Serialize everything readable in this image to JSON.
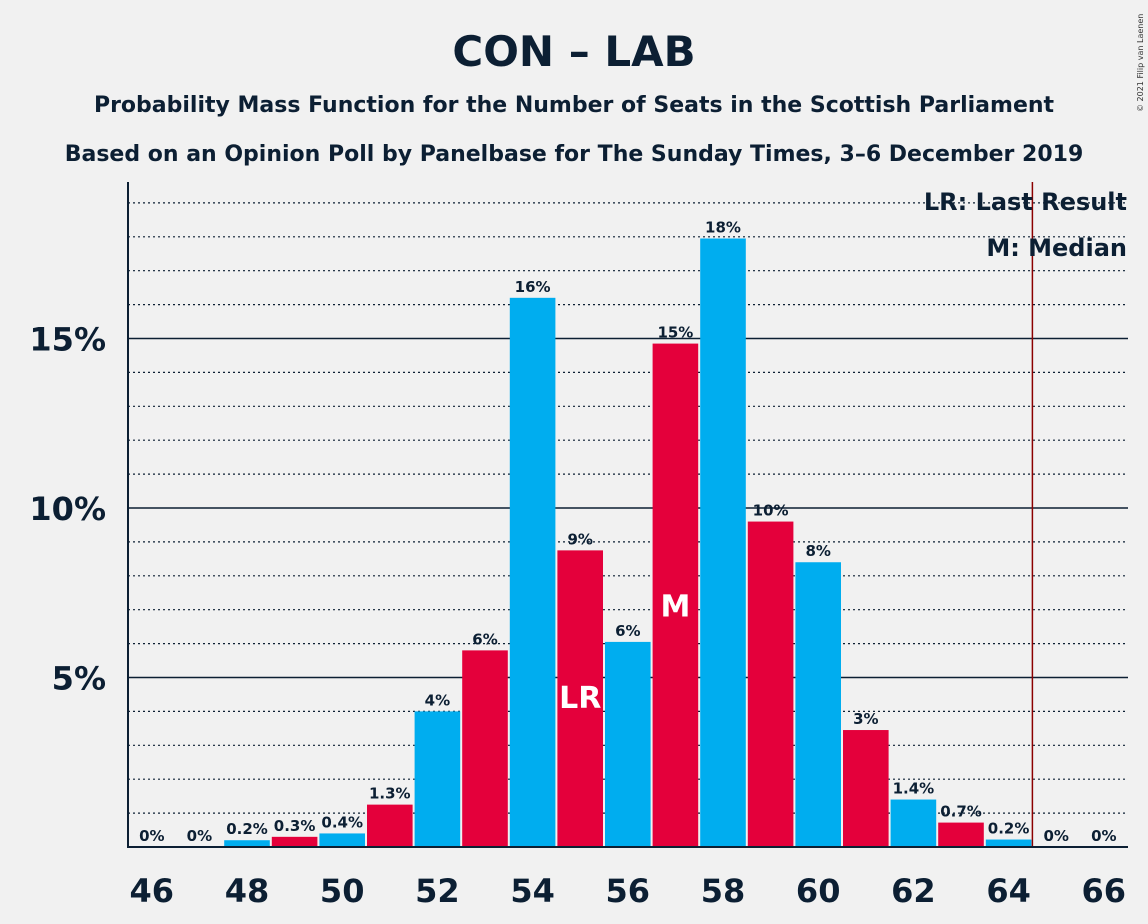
{
  "chart_data": {
    "type": "bar",
    "title": "CON – LAB",
    "subtitle_1": "Probability Mass Function for the Number of Seats in the Scottish Parliament",
    "subtitle_2": "Based on an Opinion Poll by Panelbase for The Sunday Times, 3–6 December 2019",
    "copyright": "© 2021 Filip van Laenen",
    "legend": {
      "lr": "LR: Last Result",
      "m": "M: Median",
      "placement": "top-right"
    },
    "categories": [
      46,
      47,
      48,
      49,
      50,
      51,
      52,
      53,
      54,
      55,
      56,
      57,
      58,
      59,
      60,
      61,
      62,
      63,
      64,
      65,
      66
    ],
    "values": [
      0,
      0,
      0.2,
      0.3,
      0.4,
      1.25,
      4.0,
      5.8,
      16.2,
      8.75,
      6.05,
      14.85,
      17.95,
      9.6,
      8.4,
      3.45,
      1.4,
      0.72,
      0.22,
      0,
      0
    ],
    "labels": [
      "0%",
      "0%",
      "0.2%",
      "0.3%",
      "0.4%",
      "1.3%",
      "4%",
      "6%",
      "16%",
      "9%",
      "6%",
      "15%",
      "18%",
      "10%",
      "8%",
      "3%",
      "1.4%",
      "0.7%",
      "0.2%",
      "0%",
      "0%"
    ],
    "xticks": [
      46,
      48,
      50,
      52,
      54,
      56,
      58,
      60,
      62,
      64,
      66
    ],
    "yticks": [
      {
        "value": 5,
        "label": "5%"
      },
      {
        "value": 10,
        "label": "10%"
      },
      {
        "value": 15,
        "label": "15%"
      }
    ],
    "ylim": [
      0,
      19.5
    ],
    "grid_minor_step": 1,
    "last_result_seat": 55,
    "median_seat": 57,
    "majority_line": 64.5,
    "lr_label": "LR",
    "m_label": "M",
    "colors": {
      "blue": "#00adef",
      "red": "#e4003b",
      "line": "#8b0000",
      "text": "#0c1f33",
      "background": "#f1f1f1"
    }
  }
}
